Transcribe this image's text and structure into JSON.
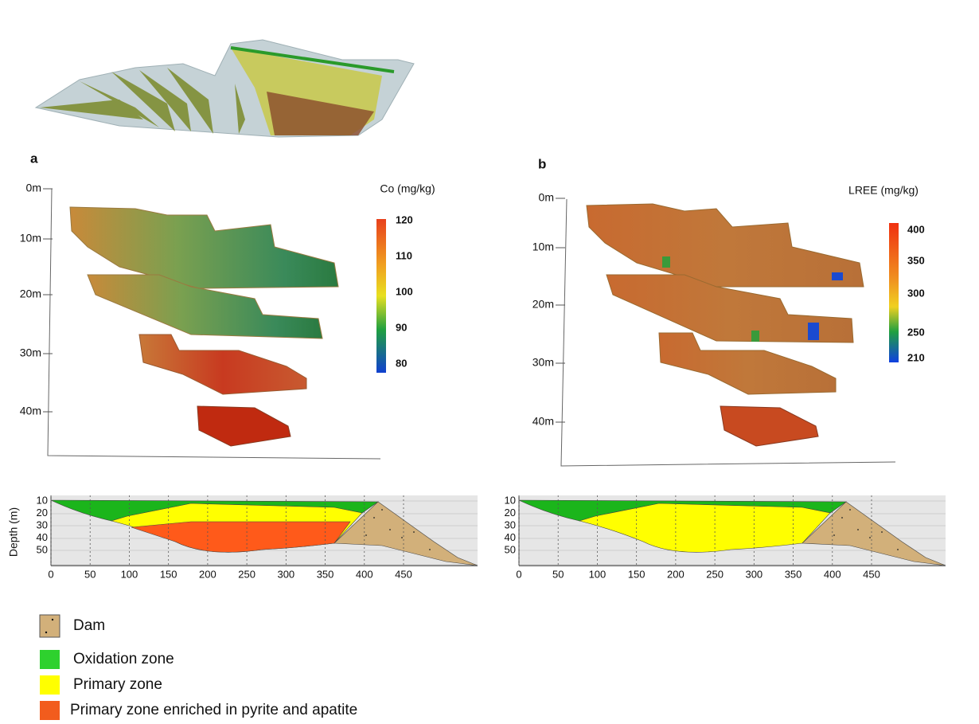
{
  "panels": [
    {
      "label": "a",
      "colorbar": {
        "title": "Co (mg/kg)",
        "ticks": [
          120,
          110,
          100,
          90,
          80
        ]
      },
      "depth_labels": [
        "0m",
        "10m",
        "20m",
        "30m",
        "40m"
      ],
      "section": {
        "ylabel": "Depth (m)",
        "yticks": [
          10,
          20,
          30,
          40,
          50
        ],
        "xticks": [
          0,
          50,
          100,
          150,
          200,
          250,
          300,
          350,
          400,
          450
        ]
      }
    },
    {
      "label": "b",
      "colorbar": {
        "title": "LREE (mg/kg)",
        "ticks": [
          400,
          350,
          300,
          250,
          210
        ]
      },
      "depth_labels": [
        "0m",
        "10m",
        "20m",
        "30m",
        "40m"
      ],
      "section": {
        "yticks": [
          10,
          20,
          30,
          40,
          50
        ],
        "xticks": [
          0,
          50,
          100,
          150,
          200,
          250,
          300,
          350,
          400,
          450
        ]
      }
    }
  ],
  "legend": [
    "Dam",
    "Oxidation zone",
    "Primary zone",
    "Primary zone enriched in pyrite and apatite"
  ]
}
